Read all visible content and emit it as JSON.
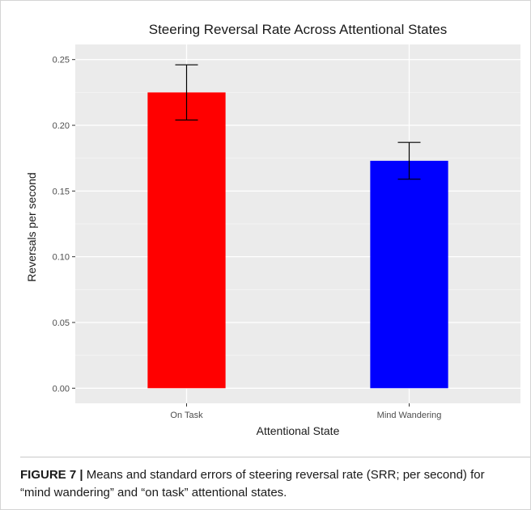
{
  "chart_data": {
    "type": "bar",
    "title": "Steering Reversal Rate Across Attentional States",
    "xlabel": "Attentional State",
    "ylabel": "Reversals per second",
    "categories": [
      "On Task",
      "Mind Wandering"
    ],
    "values": [
      0.225,
      0.173
    ],
    "error_low": [
      0.204,
      0.159
    ],
    "error_high": [
      0.246,
      0.187
    ],
    "bar_colors": [
      "#ff0000",
      "#0000ff"
    ],
    "ylim": [
      0,
      0.25
    ],
    "yticks": [
      "0.00",
      "0.05",
      "0.10",
      "0.15",
      "0.20",
      "0.25"
    ],
    "grid": true,
    "panel_background": "#ebebeb",
    "legend": "none"
  },
  "caption": {
    "label": "FIGURE 7 |",
    "text": " Means and standard errors of steering reversal rate (SRR; per second) for “mind wandering” and “on task” attentional states."
  }
}
